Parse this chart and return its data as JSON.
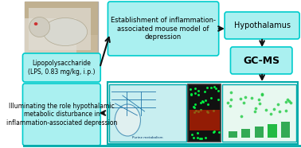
{
  "background_color": "#ffffff",
  "cyan_box_color": "#aaf0f0",
  "cyan_box_edge": "#00cccc",
  "dark_cyan_edge": "#008888",
  "box1_text": "Lipopolysaccharide\n(LPS, 0.83 mg/kg, i.p.)",
  "box2_text": "Establishment of inflammation-\nassociated mouse model of\ndepression",
  "box3_text": "Hypothalamus",
  "box4_text": "GC-MS",
  "box5_text": "Illuminating the role hypothalamic\nmetabolic disturbance in\ninflammation-associated depression",
  "title_fontsize": 6.5,
  "arrow_color": "#111111",
  "image_panel_bg": "#ddeeff",
  "image_panel_border": "#00aaaa",
  "mouse_img_border": "#cccccc",
  "bottom_panel_color": "#cceeee",
  "bottom_panel_edge": "#00aaaa"
}
